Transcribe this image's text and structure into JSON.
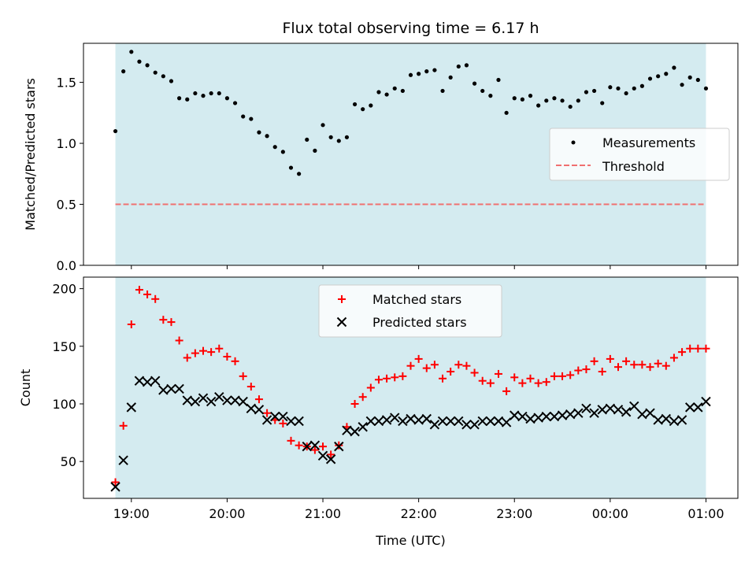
{
  "chart_data": [
    {
      "type": "scatter",
      "title": "Flux total observing time = 6.17 h",
      "xlabel": "",
      "ylabel": "Matched/Predicted stars",
      "x_is_time": true,
      "ylim": [
        0,
        1.82
      ],
      "yticks": [
        0.0,
        0.5,
        1.0,
        1.5
      ],
      "ytick_labels": [
        "0.0",
        "0.5",
        "1.0",
        "1.5"
      ],
      "xlim": [
        "18:30",
        "01:20"
      ],
      "shaded_span": [
        "18:50",
        "01:00"
      ],
      "shaded_color": "#d4ebf0",
      "legend_placement": "center-right",
      "series": [
        {
          "name": "Measurements",
          "marker": "dot",
          "color": "#000000",
          "x": [
            "18:50",
            "18:55",
            "19:00",
            "19:05",
            "19:10",
            "19:15",
            "19:20",
            "19:25",
            "19:30",
            "19:35",
            "19:40",
            "19:45",
            "19:50",
            "19:55",
            "20:00",
            "20:05",
            "20:10",
            "20:15",
            "20:20",
            "20:25",
            "20:30",
            "20:35",
            "20:40",
            "20:45",
            "20:50",
            "20:55",
            "21:00",
            "21:05",
            "21:10",
            "21:15",
            "21:20",
            "21:25",
            "21:30",
            "21:35",
            "21:40",
            "21:45",
            "21:50",
            "21:55",
            "22:00",
            "22:05",
            "22:10",
            "22:15",
            "22:20",
            "22:25",
            "22:30",
            "22:35",
            "22:40",
            "22:45",
            "22:50",
            "22:55",
            "23:00",
            "23:05",
            "23:10",
            "23:15",
            "23:20",
            "23:25",
            "23:30",
            "23:35",
            "23:40",
            "23:45",
            "23:50",
            "23:55",
            "00:00",
            "00:05",
            "00:10",
            "00:15",
            "00:20",
            "00:25",
            "00:30",
            "00:35",
            "00:40",
            "00:45",
            "00:50",
            "00:55",
            "01:00"
          ],
          "y": [
            1.1,
            1.59,
            1.75,
            1.67,
            1.64,
            1.58,
            1.55,
            1.51,
            1.37,
            1.36,
            1.41,
            1.39,
            1.41,
            1.41,
            1.37,
            1.33,
            1.22,
            1.2,
            1.09,
            1.06,
            0.97,
            0.93,
            0.8,
            0.75,
            1.03,
            0.94,
            1.15,
            1.05,
            1.02,
            1.05,
            1.32,
            1.28,
            1.31,
            1.42,
            1.4,
            1.45,
            1.43,
            1.56,
            1.57,
            1.59,
            1.6,
            1.43,
            1.54,
            1.63,
            1.64,
            1.49,
            1.43,
            1.39,
            1.52,
            1.25,
            1.37,
            1.36,
            1.39,
            1.31,
            1.35,
            1.37,
            1.35,
            1.3,
            1.35,
            1.42,
            1.43,
            1.33,
            1.46,
            1.45,
            1.41,
            1.45,
            1.47,
            1.53,
            1.55,
            1.57,
            1.62,
            1.48,
            1.54,
            1.52,
            1.45
          ]
        },
        {
          "name": "Threshold",
          "marker": "dashed-line",
          "color": "#f07070",
          "x": [
            "18:50",
            "01:00"
          ],
          "y": [
            0.5,
            0.5
          ]
        }
      ]
    },
    {
      "type": "scatter",
      "title": "",
      "xlabel": "Time (UTC)",
      "ylabel": "Count",
      "x_is_time": true,
      "ylim": [
        18,
        210
      ],
      "yticks": [
        50,
        100,
        150,
        200
      ],
      "ytick_labels": [
        "50",
        "100",
        "150",
        "200"
      ],
      "xlim": [
        "18:30",
        "01:20"
      ],
      "xticks": [
        "19:00",
        "20:00",
        "21:00",
        "22:00",
        "23:00",
        "00:00",
        "01:00"
      ],
      "xtick_labels": [
        "19:00",
        "20:00",
        "21:00",
        "22:00",
        "23:00",
        "00:00",
        "01:00"
      ],
      "shaded_span": [
        "18:50",
        "01:00"
      ],
      "shaded_color": "#d4ebf0",
      "legend_placement": "top-center",
      "series": [
        {
          "name": "Matched stars",
          "marker": "plus",
          "color": "#ff0000",
          "x": [
            "18:50",
            "18:55",
            "19:00",
            "19:05",
            "19:10",
            "19:15",
            "19:20",
            "19:25",
            "19:30",
            "19:35",
            "19:40",
            "19:45",
            "19:50",
            "19:55",
            "20:00",
            "20:05",
            "20:10",
            "20:15",
            "20:20",
            "20:25",
            "20:30",
            "20:35",
            "20:40",
            "20:45",
            "20:50",
            "20:55",
            "21:00",
            "21:05",
            "21:10",
            "21:15",
            "21:20",
            "21:25",
            "21:30",
            "21:35",
            "21:40",
            "21:45",
            "21:50",
            "21:55",
            "22:00",
            "22:05",
            "22:10",
            "22:15",
            "22:20",
            "22:25",
            "22:30",
            "22:35",
            "22:40",
            "22:45",
            "22:50",
            "22:55",
            "23:00",
            "23:05",
            "23:10",
            "23:15",
            "23:20",
            "23:25",
            "23:30",
            "23:35",
            "23:40",
            "23:45",
            "23:50",
            "23:55",
            "00:00",
            "00:05",
            "00:10",
            "00:15",
            "00:20",
            "00:25",
            "00:30",
            "00:35",
            "00:40",
            "00:45",
            "00:50",
            "00:55",
            "01:00"
          ],
          "y": [
            32,
            81,
            169,
            199,
            195,
            191,
            173,
            171,
            155,
            140,
            144,
            146,
            145,
            148,
            141,
            137,
            124,
            115,
            104,
            92,
            86,
            83,
            68,
            64,
            63,
            60,
            63,
            56,
            64,
            80,
            100,
            106,
            114,
            121,
            122,
            123,
            124,
            133,
            139,
            131,
            134,
            122,
            128,
            134,
            133,
            127,
            120,
            118,
            126,
            111,
            123,
            118,
            122,
            118,
            119,
            124,
            124,
            125,
            129,
            130,
            137,
            128,
            139,
            132,
            137,
            134,
            134,
            132,
            135,
            133,
            140,
            145,
            148,
            148,
            148
          ]
        },
        {
          "name": "Predicted stars",
          "marker": "x",
          "color": "#000000",
          "x": [
            "18:50",
            "18:55",
            "19:00",
            "19:05",
            "19:10",
            "19:15",
            "19:20",
            "19:25",
            "19:30",
            "19:35",
            "19:40",
            "19:45",
            "19:50",
            "19:55",
            "20:00",
            "20:05",
            "20:10",
            "20:15",
            "20:20",
            "20:25",
            "20:30",
            "20:35",
            "20:40",
            "20:45",
            "20:50",
            "20:55",
            "21:00",
            "21:05",
            "21:10",
            "21:15",
            "21:20",
            "21:25",
            "21:30",
            "21:35",
            "21:40",
            "21:45",
            "21:50",
            "21:55",
            "22:00",
            "22:05",
            "22:10",
            "22:15",
            "22:20",
            "22:25",
            "22:30",
            "22:35",
            "22:40",
            "22:45",
            "22:50",
            "22:55",
            "23:00",
            "23:05",
            "23:10",
            "23:15",
            "23:20",
            "23:25",
            "23:30",
            "23:35",
            "23:40",
            "23:45",
            "23:50",
            "23:55",
            "00:00",
            "00:05",
            "00:10",
            "00:15",
            "00:20",
            "00:25",
            "00:30",
            "00:35",
            "00:40",
            "00:45",
            "00:50",
            "00:55",
            "01:00"
          ],
          "y": [
            28,
            51,
            97,
            120,
            119,
            120,
            112,
            113,
            113,
            103,
            102,
            105,
            102,
            106,
            103,
            103,
            102,
            96,
            95,
            86,
            89,
            89,
            85,
            85,
            63,
            64,
            55,
            52,
            63,
            77,
            76,
            80,
            85,
            85,
            86,
            88,
            85,
            87,
            86,
            87,
            82,
            85,
            85,
            85,
            82,
            82,
            85,
            85,
            85,
            84,
            90,
            89,
            87,
            88,
            89,
            89,
            90,
            91,
            92,
            96,
            92,
            95,
            96,
            95,
            93,
            98,
            91,
            92,
            86,
            87,
            85,
            86,
            97,
            97,
            102
          ]
        }
      ]
    }
  ]
}
